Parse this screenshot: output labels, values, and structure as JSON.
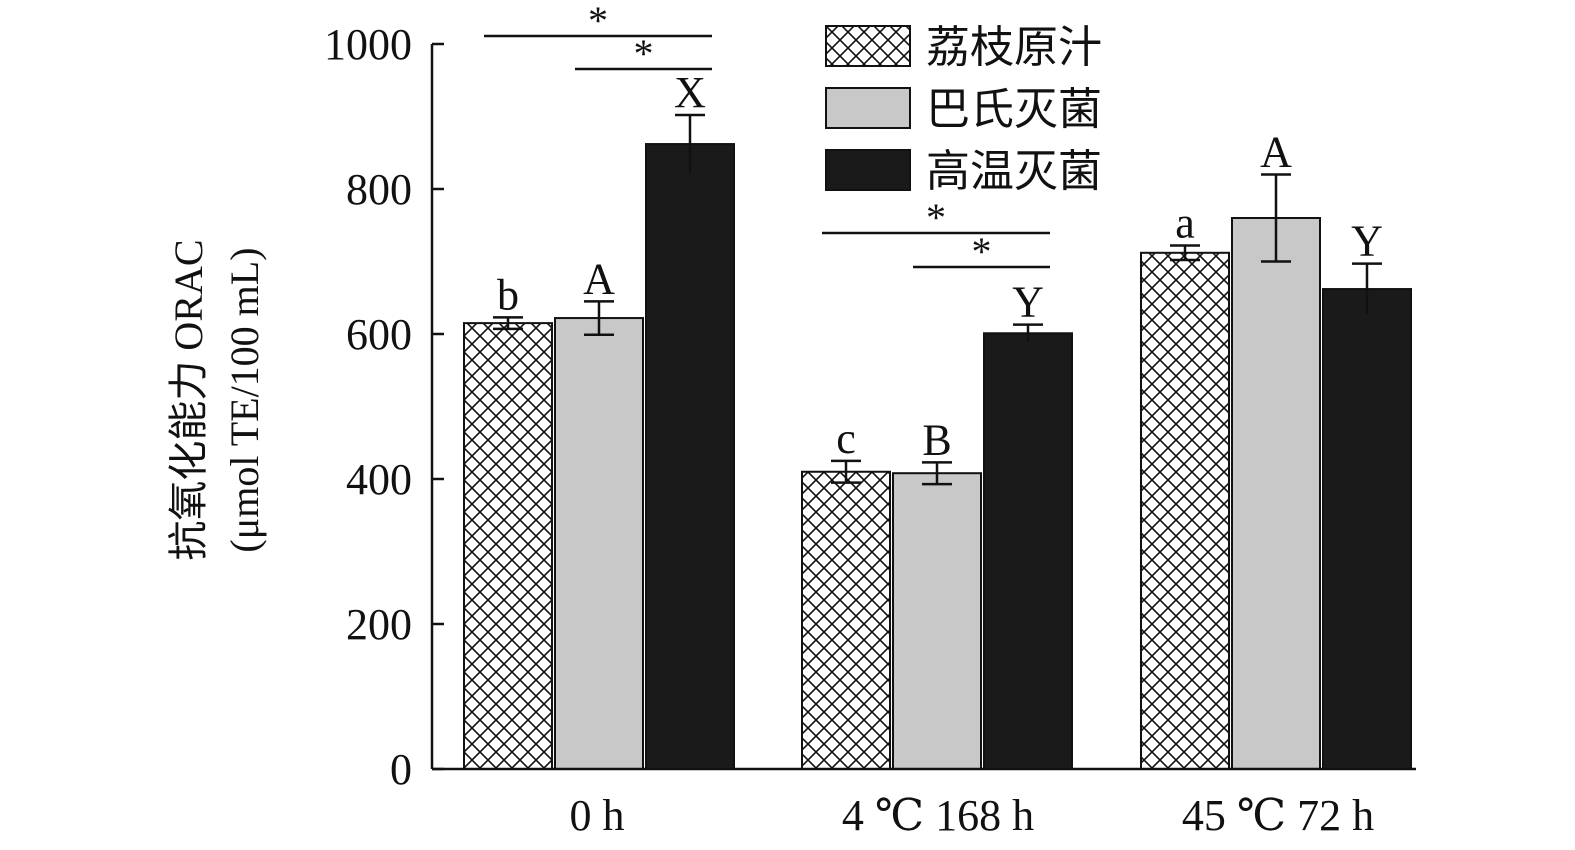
{
  "chart_data": {
    "type": "bar",
    "ylabel_line1": "抗氧化能力 ORAC",
    "ylabel_line2": "(μmol TE/100 mL)",
    "ylim": [
      0,
      1000
    ],
    "yticks": [
      0,
      200,
      400,
      600,
      800,
      1000
    ],
    "categories": [
      "0 h",
      "4 ℃ 168 h",
      "45 ℃ 72 h"
    ],
    "series": [
      {
        "name": "荔枝原汁",
        "pattern": "crosshatch",
        "color": "#ffffff",
        "values": [
          615,
          410,
          712
        ],
        "errors": [
          8,
          15,
          10
        ],
        "letters": [
          "b",
          "c",
          "a"
        ]
      },
      {
        "name": "巴氏灭菌",
        "pattern": "solid",
        "color": "#c8c8c8",
        "values": [
          622,
          408,
          760
        ],
        "errors": [
          23,
          15,
          60
        ],
        "letters": [
          "A",
          "B",
          "A"
        ]
      },
      {
        "name": "高温灭菌",
        "pattern": "solid",
        "color": "#1a1a1a",
        "values": [
          862,
          601,
          662
        ],
        "errors": [
          40,
          12,
          35
        ],
        "letters": [
          "X",
          "Y",
          "Y"
        ]
      }
    ],
    "significance": [
      {
        "group": 0,
        "from": 0,
        "to": 2,
        "label": "*",
        "level": 0
      },
      {
        "group": 0,
        "from": 1,
        "to": 2,
        "label": "*",
        "level": 1
      },
      {
        "group": 1,
        "from": 0,
        "to": 2,
        "label": "*",
        "level": 0
      },
      {
        "group": 1,
        "from": 1,
        "to": 2,
        "label": "*",
        "level": 1
      }
    ],
    "legend_position": "top-center"
  }
}
